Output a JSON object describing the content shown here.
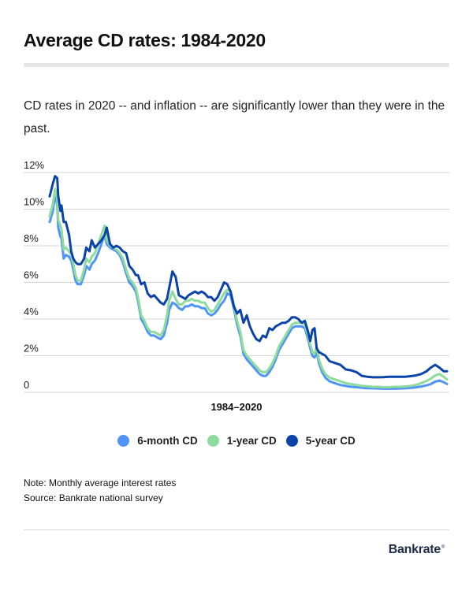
{
  "header": {
    "title": "Average CD rates: 1984-2020",
    "subtitle": "CD rates in 2020 -- and inflation -- are significantly lower than they were in the past."
  },
  "footer": {
    "note": "Note: Monthly average interest rates",
    "source": "Source: Bankrate national survey",
    "logo": "Bankrate",
    "logo_mark": "®"
  },
  "chart_data": {
    "type": "line",
    "title": "Average CD rates: 1984-2020",
    "xlabel": "1984–2020",
    "ylabel": "",
    "xlim": [
      1984,
      2020.9
    ],
    "ylim": [
      0,
      12
    ],
    "grid": true,
    "legend_position": "bottom-center",
    "y_ticks": [
      {
        "value": 0,
        "label": "0"
      },
      {
        "value": 2,
        "label": "2%"
      },
      {
        "value": 4,
        "label": "4%"
      },
      {
        "value": 6,
        "label": "6%"
      },
      {
        "value": 8,
        "label": "8%"
      },
      {
        "value": 10,
        "label": "10%"
      },
      {
        "value": 12,
        "label": "12%"
      }
    ],
    "series": [
      {
        "name": "6-month CD",
        "color": "#4f94f8",
        "x": [
          1984.0,
          1984.3,
          1984.5,
          1984.7,
          1984.8,
          1985.0,
          1985.1,
          1985.3,
          1985.5,
          1985.8,
          1986.0,
          1986.2,
          1986.4,
          1986.6,
          1986.9,
          1987.2,
          1987.4,
          1987.7,
          1987.9,
          1988.2,
          1988.5,
          1988.8,
          1989.1,
          1989.3,
          1989.6,
          1989.9,
          1990.2,
          1990.5,
          1990.8,
          1991.1,
          1991.4,
          1991.7,
          1992.0,
          1992.2,
          1992.5,
          1992.8,
          1993.1,
          1993.4,
          1993.7,
          1994.0,
          1994.3,
          1994.6,
          1994.9,
          1995.1,
          1995.4,
          1995.7,
          1996.0,
          1996.3,
          1996.6,
          1996.9,
          1997.2,
          1997.5,
          1997.8,
          1998.1,
          1998.4,
          1998.7,
          1999.0,
          1999.3,
          1999.6,
          1999.9,
          2000.2,
          2000.5,
          2000.8,
          2001.1,
          2001.4,
          2001.7,
          2002.0,
          2002.3,
          2002.6,
          2002.9,
          2003.2,
          2003.5,
          2003.8,
          2004.1,
          2004.4,
          2004.7,
          2005.0,
          2005.3,
          2005.6,
          2005.9,
          2006.2,
          2006.5,
          2006.8,
          2007.1,
          2007.4,
          2007.7,
          2008.0,
          2008.2,
          2008.4,
          2008.6,
          2008.8,
          2009.0,
          2009.3,
          2009.6,
          2010.0,
          2010.5,
          2011.0,
          2011.5,
          2012.0,
          2012.5,
          2013.0,
          2013.5,
          2014.0,
          2014.5,
          2015.0,
          2015.5,
          2016.0,
          2016.5,
          2017.0,
          2017.5,
          2018.0,
          2018.5,
          2019.0,
          2019.4,
          2019.8,
          2020.2,
          2020.6,
          2020.9
        ],
        "values": [
          9.3,
          9.9,
          10.8,
          10.2,
          9.0,
          8.5,
          8.4,
          7.3,
          7.5,
          7.4,
          7.2,
          6.7,
          6.1,
          5.9,
          5.9,
          6.4,
          6.9,
          6.7,
          7.0,
          7.2,
          7.6,
          8.1,
          8.6,
          8.1,
          7.9,
          7.8,
          7.7,
          7.5,
          7.1,
          6.5,
          6.0,
          5.8,
          5.5,
          5.0,
          4.0,
          3.7,
          3.3,
          3.1,
          3.1,
          3.0,
          2.9,
          3.1,
          3.8,
          4.5,
          4.9,
          4.8,
          4.6,
          4.5,
          4.7,
          4.7,
          4.8,
          4.7,
          4.7,
          4.6,
          4.6,
          4.3,
          4.2,
          4.3,
          4.5,
          4.8,
          5.0,
          5.4,
          5.3,
          4.6,
          3.7,
          3.1,
          2.1,
          1.8,
          1.6,
          1.4,
          1.2,
          1.0,
          0.9,
          0.9,
          1.1,
          1.4,
          1.8,
          2.3,
          2.6,
          2.9,
          3.2,
          3.5,
          3.6,
          3.6,
          3.6,
          3.5,
          2.9,
          2.4,
          2.0,
          1.9,
          2.2,
          1.6,
          1.1,
          0.8,
          0.6,
          0.5,
          0.4,
          0.35,
          0.3,
          0.28,
          0.25,
          0.23,
          0.22,
          0.21,
          0.2,
          0.2,
          0.2,
          0.21,
          0.22,
          0.24,
          0.27,
          0.32,
          0.38,
          0.45,
          0.58,
          0.65,
          0.55,
          0.45
        ]
      },
      {
        "name": "1-year CD",
        "color": "#8edc9c",
        "x": [
          1984.0,
          1984.3,
          1984.5,
          1984.7,
          1984.8,
          1985.0,
          1985.1,
          1985.3,
          1985.5,
          1985.8,
          1986.0,
          1986.2,
          1986.4,
          1986.6,
          1986.9,
          1987.2,
          1987.4,
          1987.7,
          1987.9,
          1988.2,
          1988.5,
          1988.8,
          1989.1,
          1989.3,
          1989.6,
          1989.9,
          1990.2,
          1990.5,
          1990.8,
          1991.1,
          1991.4,
          1991.7,
          1992.0,
          1992.2,
          1992.5,
          1992.8,
          1993.1,
          1993.4,
          1993.7,
          1994.0,
          1994.3,
          1994.6,
          1994.9,
          1995.1,
          1995.4,
          1995.7,
          1996.0,
          1996.3,
          1996.6,
          1996.9,
          1997.2,
          1997.5,
          1997.8,
          1998.1,
          1998.4,
          1998.7,
          1999.0,
          1999.3,
          1999.6,
          1999.9,
          2000.2,
          2000.5,
          2000.8,
          2001.1,
          2001.4,
          2001.7,
          2002.0,
          2002.3,
          2002.6,
          2002.9,
          2003.2,
          2003.5,
          2003.8,
          2004.1,
          2004.4,
          2004.7,
          2005.0,
          2005.3,
          2005.6,
          2005.9,
          2006.2,
          2006.5,
          2006.8,
          2007.1,
          2007.4,
          2007.7,
          2008.0,
          2008.2,
          2008.4,
          2008.6,
          2008.8,
          2009.0,
          2009.3,
          2009.6,
          2010.0,
          2010.5,
          2011.0,
          2011.5,
          2012.0,
          2012.5,
          2013.0,
          2013.5,
          2014.0,
          2014.5,
          2015.0,
          2015.5,
          2016.0,
          2016.5,
          2017.0,
          2017.5,
          2018.0,
          2018.5,
          2019.0,
          2019.4,
          2019.8,
          2020.2,
          2020.6,
          2020.9
        ],
        "values": [
          9.6,
          10.3,
          11.1,
          10.6,
          9.4,
          9.1,
          8.9,
          7.8,
          7.9,
          7.7,
          7.5,
          7.0,
          6.4,
          6.1,
          6.1,
          6.7,
          7.3,
          7.1,
          7.4,
          7.6,
          8.1,
          8.6,
          9.1,
          8.3,
          8.0,
          7.9,
          7.8,
          7.6,
          7.3,
          6.7,
          6.2,
          6.0,
          5.7,
          5.2,
          4.2,
          3.9,
          3.5,
          3.3,
          3.3,
          3.2,
          3.1,
          3.4,
          4.2,
          5.0,
          5.5,
          5.1,
          4.8,
          4.8,
          5.0,
          5.0,
          5.1,
          5.0,
          5.0,
          4.9,
          4.9,
          4.6,
          4.4,
          4.5,
          4.8,
          5.1,
          5.4,
          5.6,
          5.5,
          4.8,
          3.9,
          3.3,
          2.3,
          2.0,
          1.8,
          1.6,
          1.4,
          1.2,
          1.1,
          1.1,
          1.3,
          1.6,
          2.0,
          2.5,
          2.8,
          3.1,
          3.4,
          3.7,
          3.8,
          3.8,
          3.8,
          3.7,
          3.1,
          2.6,
          2.2,
          2.1,
          2.5,
          1.8,
          1.3,
          1.0,
          0.8,
          0.7,
          0.6,
          0.5,
          0.45,
          0.4,
          0.35,
          0.33,
          0.3,
          0.3,
          0.28,
          0.28,
          0.3,
          0.3,
          0.32,
          0.35,
          0.4,
          0.5,
          0.62,
          0.75,
          0.92,
          1.0,
          0.85,
          0.7
        ]
      },
      {
        "name": "5-year CD",
        "color": "#0a44a8",
        "x": [
          1984.0,
          1984.3,
          1984.5,
          1984.7,
          1984.8,
          1985.0,
          1985.1,
          1985.3,
          1985.5,
          1985.8,
          1986.0,
          1986.2,
          1986.4,
          1986.6,
          1986.9,
          1987.2,
          1987.4,
          1987.7,
          1987.9,
          1988.2,
          1988.5,
          1988.8,
          1989.1,
          1989.3,
          1989.6,
          1989.9,
          1990.2,
          1990.5,
          1990.8,
          1991.1,
          1991.4,
          1991.7,
          1992.0,
          1992.2,
          1992.5,
          1992.8,
          1993.1,
          1993.4,
          1993.7,
          1994.0,
          1994.3,
          1994.6,
          1994.9,
          1995.1,
          1995.4,
          1995.7,
          1996.0,
          1996.3,
          1996.6,
          1996.9,
          1997.2,
          1997.5,
          1997.8,
          1998.1,
          1998.4,
          1998.7,
          1999.0,
          1999.3,
          1999.6,
          1999.9,
          2000.2,
          2000.5,
          2000.8,
          2001.1,
          2001.4,
          2001.7,
          2002.0,
          2002.3,
          2002.6,
          2002.9,
          2003.2,
          2003.5,
          2003.8,
          2004.1,
          2004.4,
          2004.7,
          2005.0,
          2005.3,
          2005.6,
          2005.9,
          2006.2,
          2006.5,
          2006.8,
          2007.1,
          2007.4,
          2007.7,
          2008.0,
          2008.2,
          2008.4,
          2008.6,
          2008.8,
          2009.0,
          2009.3,
          2009.6,
          2010.0,
          2010.5,
          2011.0,
          2011.5,
          2012.0,
          2012.5,
          2013.0,
          2013.5,
          2014.0,
          2014.5,
          2015.0,
          2015.5,
          2016.0,
          2016.5,
          2017.0,
          2017.5,
          2018.0,
          2018.5,
          2019.0,
          2019.4,
          2019.8,
          2020.2,
          2020.6,
          2020.9
        ],
        "values": [
          10.7,
          11.4,
          11.8,
          11.7,
          10.7,
          9.9,
          10.2,
          9.3,
          9.3,
          8.6,
          7.7,
          7.3,
          7.1,
          7.0,
          7.0,
          7.3,
          7.9,
          7.7,
          8.3,
          7.9,
          8.1,
          8.3,
          8.6,
          9.0,
          8.1,
          7.9,
          8.0,
          7.9,
          7.7,
          7.6,
          6.9,
          6.7,
          6.4,
          6.4,
          5.9,
          6.0,
          5.4,
          5.2,
          5.3,
          5.1,
          4.9,
          4.8,
          5.1,
          5.7,
          6.6,
          6.3,
          5.3,
          5.2,
          5.1,
          5.3,
          5.4,
          5.5,
          5.4,
          5.5,
          5.4,
          5.2,
          5.2,
          5.0,
          5.2,
          5.6,
          6.0,
          5.9,
          5.5,
          4.7,
          4.3,
          4.5,
          3.8,
          4.2,
          3.6,
          3.2,
          2.9,
          2.8,
          3.1,
          3.0,
          3.5,
          3.4,
          3.6,
          3.7,
          3.8,
          3.8,
          3.9,
          4.1,
          4.1,
          4.0,
          3.8,
          3.9,
          3.3,
          2.8,
          3.4,
          3.5,
          2.4,
          2.2,
          2.1,
          2.0,
          1.7,
          1.6,
          1.5,
          1.25,
          1.2,
          1.1,
          0.9,
          0.85,
          0.82,
          0.82,
          0.83,
          0.85,
          0.85,
          0.85,
          0.85,
          0.88,
          0.92,
          1.0,
          1.15,
          1.35,
          1.5,
          1.35,
          1.15,
          1.15
        ]
      }
    ]
  }
}
